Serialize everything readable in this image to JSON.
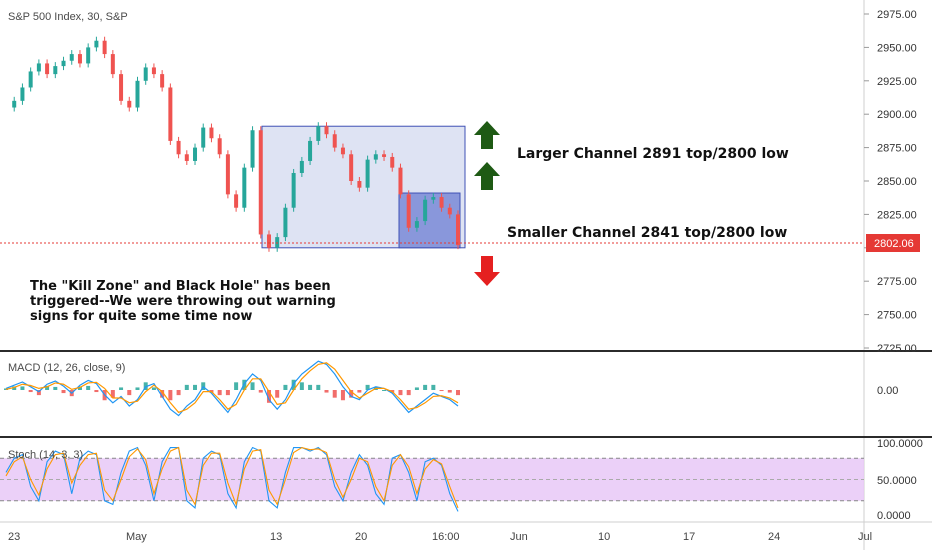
{
  "chart_data": {
    "type": "line",
    "title": "S&P 500 Index, 30, S&P",
    "price_axis": {
      "ticks": [
        "2975.00",
        "2950.00",
        "2925.00",
        "2900.00",
        "2875.00",
        "2850.00",
        "2825.00",
        "2800.00",
        "2775.00",
        "2750.00",
        "2725.00"
      ],
      "current_price": "2802.06"
    },
    "x_ticks": [
      "23",
      "May",
      "13",
      "20",
      "16:00",
      "Jun",
      "10",
      "17",
      "24",
      "Jul"
    ],
    "price_series": {
      "name": "",
      "closes": [
        2905,
        2910,
        2920,
        2932,
        2938,
        2930,
        2936,
        2940,
        2945,
        2938,
        2950,
        2955,
        2945,
        2930,
        2910,
        2905,
        2925,
        2935,
        2930,
        2920,
        2880,
        2870,
        2865,
        2875,
        2890,
        2882,
        2870,
        2840,
        2830,
        2860,
        2888,
        2810,
        2800,
        2808,
        2830,
        2856,
        2865,
        2880,
        2891,
        2885,
        2875,
        2870,
        2850,
        2845,
        2866,
        2870,
        2868,
        2860,
        2840,
        2815,
        2820,
        2836,
        2838,
        2830,
        2825,
        2802
      ]
    },
    "zones": [
      {
        "label": "Larger Channel 2891 top/2800 low",
        "top": 2891,
        "bottom": 2800
      },
      {
        "label": "Smaller Channel 2841 top/2800 low",
        "top": 2841,
        "bottom": 2800
      }
    ],
    "annotations": {
      "larger_channel": "Larger Channel 2891 top/2800 low",
      "smaller_channel": "Smaller Channel 2841 top/2800 low",
      "kill_zone_line1": "The \"Kill Zone\" and Black Hole\" has been",
      "kill_zone_line2": "triggered--We were throwing out warning",
      "kill_zone_line3": "signs for quite some time now"
    },
    "macd": {
      "label": "MACD (12, 26, close, 9)",
      "ticks": [
        "0.00"
      ],
      "macd_line": [
        0.5,
        1.5,
        2.5,
        1,
        -0.5,
        1.8,
        2.8,
        1.2,
        -1,
        1.5,
        3,
        2,
        -1.5,
        -4,
        -2,
        -5,
        -3,
        1,
        2,
        -2,
        -6,
        -8,
        -5,
        -3,
        1,
        -1,
        -4,
        -7,
        -3,
        2,
        5,
        3,
        -3,
        -6,
        -3,
        2,
        5,
        7,
        9,
        8,
        5,
        1,
        -2,
        -3,
        0,
        1,
        0.5,
        -1,
        -4,
        -7,
        -5,
        -3,
        -1,
        -2,
        -3,
        -5
      ],
      "signal_line": [
        0.2,
        0.8,
        1.8,
        1.4,
        0.5,
        1,
        2.2,
        1.8,
        0.2,
        0.8,
        2.2,
        2.4,
        0.5,
        -2.5,
        -2.5,
        -4,
        -3.5,
        -0.5,
        1.5,
        -0.5,
        -4,
        -7,
        -6,
        -4,
        -0.5,
        -0.5,
        -3,
        -6,
        -4.5,
        0,
        3.5,
        3.5,
        -0.5,
        -4.5,
        -4,
        0,
        3.5,
        6,
        8,
        8.5,
        6.5,
        3,
        -0.5,
        -2.5,
        -1,
        0.5,
        0.5,
        -0.5,
        -3,
        -6,
        -5.5,
        -4,
        -2,
        -1.8,
        -2.5,
        -4
      ]
    },
    "stochastic": {
      "label": "Stoch (14, 3, 3)",
      "ticks": [
        "100.0000",
        "50.0000",
        "0.0000"
      ],
      "upper_band": 80,
      "lower_band": 20,
      "k_line": [
        60,
        80,
        85,
        40,
        20,
        75,
        90,
        85,
        30,
        80,
        90,
        85,
        20,
        15,
        60,
        90,
        95,
        70,
        20,
        75,
        95,
        95,
        20,
        10,
        80,
        90,
        85,
        30,
        10,
        75,
        95,
        90,
        20,
        10,
        60,
        95,
        95,
        90,
        95,
        85,
        40,
        20,
        60,
        85,
        70,
        30,
        15,
        80,
        85,
        60,
        20,
        75,
        80,
        70,
        30,
        5
      ],
      "d_line": [
        55,
        75,
        82,
        50,
        28,
        65,
        85,
        87,
        45,
        70,
        85,
        87,
        35,
        20,
        50,
        82,
        93,
        78,
        30,
        65,
        90,
        95,
        35,
        15,
        70,
        87,
        87,
        45,
        15,
        65,
        90,
        92,
        35,
        15,
        50,
        88,
        95,
        92,
        93,
        88,
        50,
        25,
        50,
        80,
        75,
        40,
        20,
        70,
        85,
        68,
        30,
        65,
        78,
        72,
        40,
        10
      ]
    },
    "colors": {
      "up_candle": "#26a69a",
      "down_candle": "#ef5350",
      "macd_line": "#2196f3",
      "signal_line": "#ff9800",
      "stoch_fill": "#e7c8f7",
      "zone_large_fill": "#d6dcf0",
      "zone_small_fill": "#7f8ed8",
      "zone_border": "#3f51b5",
      "arrow_up": "#1e5a14",
      "arrow_down": "#e52020",
      "price_label_bg": "#e53935"
    }
  }
}
